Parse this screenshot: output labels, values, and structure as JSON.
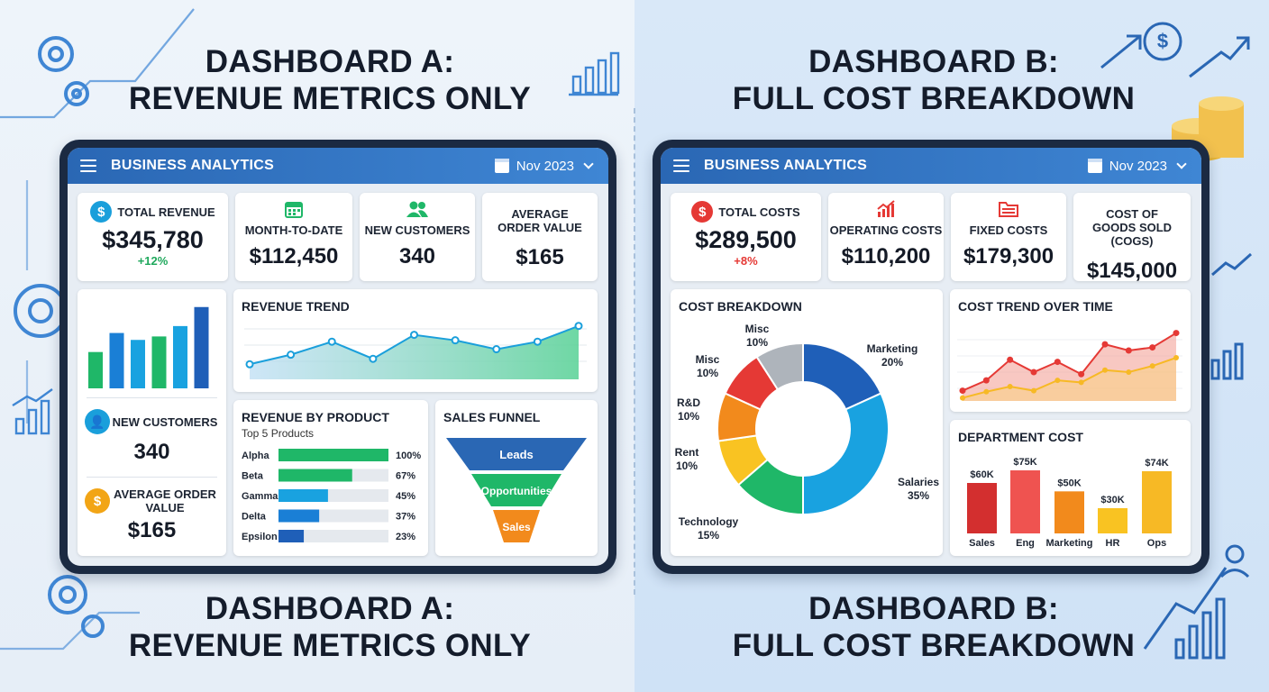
{
  "colors": {
    "accent_blue": "#2a67b4",
    "green": "#1fb768",
    "red": "#e53935",
    "orange": "#f28a1c",
    "yellow": "#f9c322",
    "gray": "#aeb4bb"
  },
  "dashboard_a": {
    "heading_top": [
      "DASHBOARD A:",
      "REVENUE METRICS ONLY"
    ],
    "heading_bottom": [
      "DASHBOARD A:",
      "REVENUE METRICS ONLY"
    ],
    "app_title": "BUSINESS ANALYTICS",
    "date": "Nov 2023",
    "kpis": {
      "total_revenue": {
        "icon": "dollar-icon",
        "title": "TOTAL REVENUE",
        "value": "$345,780",
        "change": "+12%"
      },
      "month_to_date": {
        "icon": "calendar-icon",
        "title": "MONTH-TO-DATE",
        "value": "$112,450"
      },
      "new_customers": {
        "icon": "users-icon",
        "title": "NEW CUSTOMERS",
        "value": "340"
      },
      "average_order_value": {
        "title": "AVERAGE ORDER VALUE",
        "value": "$165"
      }
    },
    "side": {
      "bar_values": [
        42,
        64,
        56,
        60,
        72,
        94
      ],
      "new_customers_title": "NEW CUSTOMERS",
      "new_customers_value": "340",
      "aov_title": "AVERAGE ORDER VALUE",
      "aov_value": "$165"
    },
    "revenue_trend": {
      "title": "REVENUE TREND",
      "values": [
        22,
        36,
        55,
        30,
        65,
        57,
        44,
        55,
        78
      ]
    },
    "revenue_by_product": {
      "title": "REVENUE BY PRODUCT",
      "subtitle": "Top 5 Products",
      "rows": [
        {
          "label": "Alpha",
          "pct": "100%",
          "value": 100
        },
        {
          "label": "Beta",
          "pct": "67%",
          "value": 67
        },
        {
          "label": "Gamma",
          "pct": "45%",
          "value": 45
        },
        {
          "label": "Delta",
          "pct": "37%",
          "value": 37
        },
        {
          "label": "Epsilon",
          "pct": "23%",
          "value": 23
        }
      ]
    },
    "sales_funnel": {
      "title": "SALES FUNNEL",
      "stages": [
        "Leads",
        "Opportunities",
        "Sales"
      ]
    }
  },
  "dashboard_b": {
    "heading_top": [
      "DASHBOARD B:",
      "FULL COST BREAKDOWN"
    ],
    "heading_bottom": [
      "DASHBOARD B:",
      "FULL COST BREAKDOWN"
    ],
    "app_title": "BUSINESS ANALYTICS",
    "date": "Nov 2023",
    "kpis": {
      "total_costs": {
        "icon": "dollar-icon",
        "title": "TOTAL COSTS",
        "value": "$289,500",
        "change": "+8%"
      },
      "operating_costs": {
        "icon": "chart-up-icon",
        "title": "OPERATING COSTS",
        "value": "$110,200"
      },
      "fixed_costs": {
        "icon": "folder-icon",
        "title": "FIXED COSTS",
        "value": "$179,300"
      },
      "cogs": {
        "title": "COST OF GOODS SOLD (COGS)",
        "value": "$145,000"
      }
    },
    "cost_breakdown": {
      "title": "COST BREAKDOWN",
      "slices": [
        {
          "name": "Marketing",
          "pct": "20%",
          "value": 20,
          "color": "#1f5fb8"
        },
        {
          "name": "Salaries",
          "pct": "35%",
          "value": 35,
          "color": "#19a2e0"
        },
        {
          "name": "Technology",
          "pct": "15%",
          "value": 15,
          "color": "#1fb768"
        },
        {
          "name": "Rent",
          "pct": "10%",
          "value": 10,
          "color": "#f9c322"
        },
        {
          "name": "R&D",
          "pct": "10%",
          "value": 10,
          "color": "#f28a1c"
        },
        {
          "name": "Misc",
          "pct": "10%",
          "value": 10,
          "color": "#e53935"
        },
        {
          "name": "Misc",
          "pct": "10%",
          "value": 10,
          "color": "#aeb4bb"
        }
      ]
    },
    "cost_trend": {
      "title": "COST TREND OVER TIME",
      "series_a": [
        10,
        20,
        40,
        28,
        38,
        26,
        55,
        49,
        52,
        66
      ],
      "series_b": [
        3,
        9,
        14,
        10,
        20,
        18,
        30,
        28,
        34,
        42
      ]
    },
    "department_cost": {
      "title": "DEPARTMENT COST",
      "bars": [
        {
          "dept": "Sales",
          "label": "$60K",
          "value": 60,
          "color": "#d32f2f"
        },
        {
          "dept": "Eng",
          "label": "$75K",
          "value": 75,
          "color": "#ef5350"
        },
        {
          "dept": "Marketing",
          "label": "$50K",
          "value": 50,
          "color": "#f28a1c"
        },
        {
          "dept": "HR",
          "label": "$30K",
          "value": 30,
          "color": "#f9c322"
        },
        {
          "dept": "Ops",
          "label": "$74K",
          "value": 74,
          "color": "#f7b925"
        }
      ]
    }
  }
}
